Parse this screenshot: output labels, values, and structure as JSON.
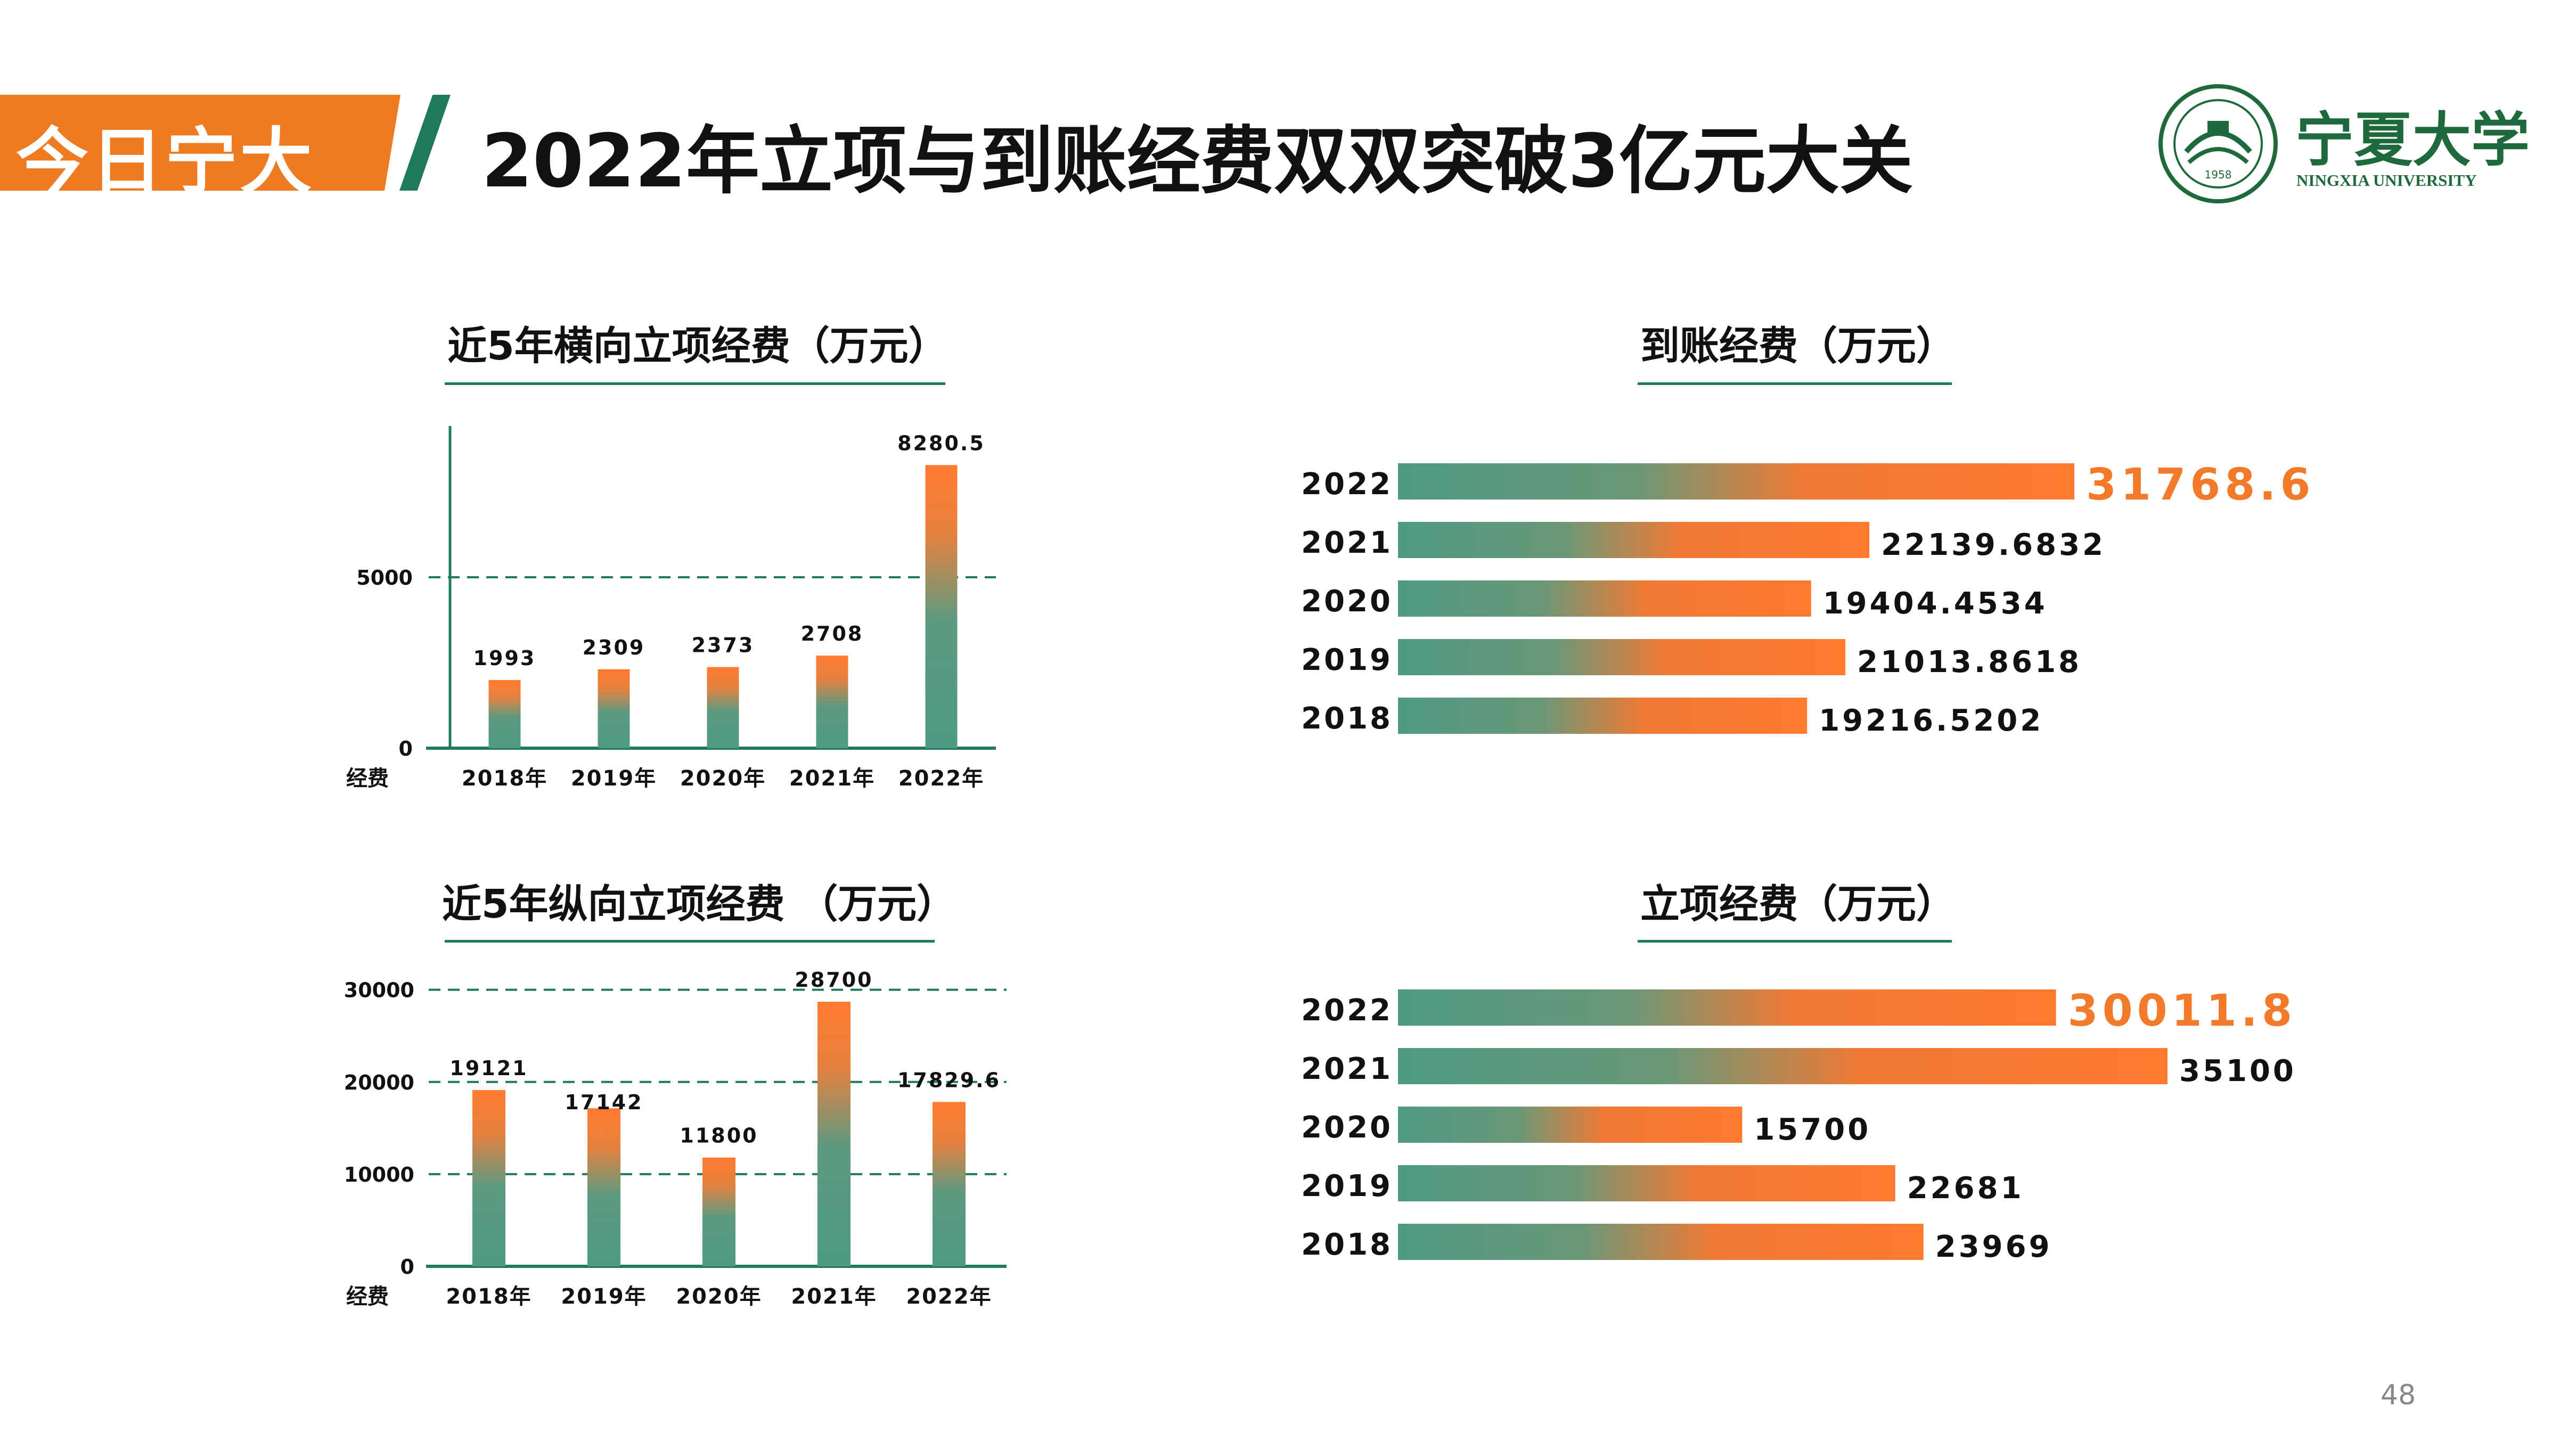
{
  "header": {
    "tag": "今日宁大",
    "title": "2022年立项与到账经费双双突破3亿元大关"
  },
  "logo": {
    "name_cn": "宁夏大学",
    "name_en": "NINGXIA UNIVERSITY",
    "seal_year": "1958"
  },
  "page_number": "48",
  "colors": {
    "accent_orange": "#ee7b22",
    "accent_green": "#1e7a5b",
    "bar_green": "#4f9a84",
    "bar_orange": "#ff7a2f"
  },
  "chart_data": [
    {
      "id": "horizontal-projects",
      "type": "bar",
      "title": "近5年横向立项经费（万元）",
      "ylabel": "经费",
      "categories": [
        "2018年",
        "2019年",
        "2020年",
        "2021年",
        "2022年"
      ],
      "values": [
        1993,
        2309,
        2373,
        2708,
        8280.5
      ],
      "value_labels": [
        "1993",
        "2309",
        "2373",
        "2708",
        "8280.5"
      ],
      "yticks": [
        0,
        5000
      ],
      "ytick_labels": [
        "0",
        "5000"
      ],
      "ylim": [
        0,
        8800
      ],
      "grid": "dashed at 5000"
    },
    {
      "id": "vertical-projects",
      "type": "bar",
      "title": "近5年纵向立项经费  （万元）",
      "ylabel": "经费",
      "categories": [
        "2018年",
        "2019年",
        "2020年",
        "2021年",
        "2022年"
      ],
      "values": [
        19121,
        17142,
        11800,
        28700,
        17829.6
      ],
      "value_labels": [
        "19121",
        "17142",
        "11800",
        "28700",
        "17829.6"
      ],
      "yticks": [
        0,
        10000,
        20000,
        30000
      ],
      "ytick_labels": [
        "0",
        "10000",
        "20000",
        "30000"
      ],
      "ylim": [
        0,
        30500
      ],
      "grid": "dashed at 10000, 20000, 30000"
    },
    {
      "id": "received-funds",
      "type": "bar",
      "orientation": "horizontal",
      "title": "到账经费（万元）",
      "categories": [
        "2022",
        "2021",
        "2020",
        "2019",
        "2018"
      ],
      "values": [
        31768.6,
        22139.6832,
        19404.4534,
        21013.8618,
        19216.5202
      ],
      "value_labels": [
        "31768.6",
        "22139.6832",
        "19404.4534",
        "21013.8618",
        "19216.5202"
      ],
      "highlight": "2022"
    },
    {
      "id": "project-funds",
      "type": "bar",
      "orientation": "horizontal",
      "title": "立项经费（万元）",
      "categories": [
        "2022",
        "2021",
        "2020",
        "2019",
        "2018"
      ],
      "values": [
        30011.8,
        35100,
        15700,
        22681,
        23969
      ],
      "value_labels": [
        "30011.8",
        "35100",
        "15700",
        "22681",
        "23969"
      ],
      "highlight": "2022"
    }
  ]
}
